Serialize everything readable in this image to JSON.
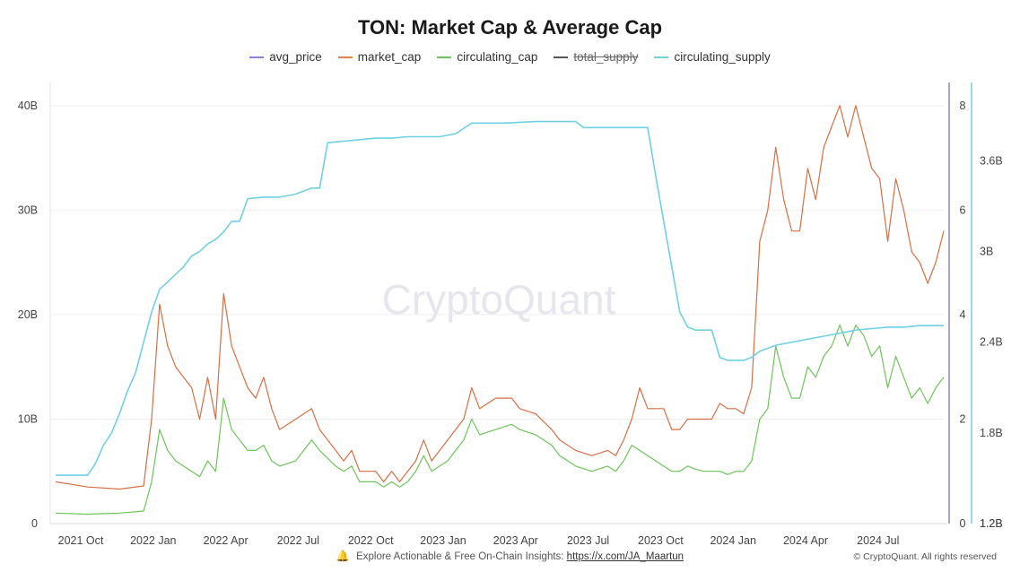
{
  "title": "TON: Market Cap & Average Cap",
  "legend": [
    {
      "label": "avg_price",
      "color": "#8f7fdc",
      "hidden": false
    },
    {
      "label": "market_cap",
      "color": "#e8834e",
      "hidden": false
    },
    {
      "label": "circulating_cap",
      "color": "#6cc659",
      "hidden": false
    },
    {
      "label": "total_supply",
      "color": "#555555",
      "hidden": true
    },
    {
      "label": "circulating_supply",
      "color": "#6fd0e6",
      "hidden": false
    }
  ],
  "footer": {
    "text": "Explore Actionable & Free On-Chain Insights: ",
    "link": "https://x.com/JA_Maartun",
    "copyright": "© CryptoQuant. All rights reserved"
  },
  "watermark": "CryptoQuant",
  "chart_data": {
    "type": "line",
    "x_ticks": [
      "2021 Oct",
      "2022 Jan",
      "2022 Apr",
      "2022 Jul",
      "2022 Oct",
      "2023 Jan",
      "2023 Apr",
      "2023 Jul",
      "2023 Oct",
      "2024 Jan",
      "2024 Apr",
      "2024 Jul"
    ],
    "y_left": {
      "ticks": [
        "0",
        "10B",
        "20B",
        "30B",
        "40B"
      ],
      "values": [
        0,
        10,
        20,
        30,
        40
      ],
      "unit": "B",
      "range": [
        0,
        40.5
      ]
    },
    "y_right_price": {
      "ticks": [
        "0",
        "2",
        "4",
        "6",
        "8"
      ],
      "values": [
        0,
        2,
        4,
        6,
        8
      ],
      "range": [
        0,
        8.1
      ],
      "axis_color": "#8f7fdc"
    },
    "y_right_supply": {
      "ticks": [
        "1.2B",
        "1.8B",
        "2.4B",
        "3B",
        "3.6B"
      ],
      "values": [
        1.2,
        1.8,
        2.4,
        3.0,
        3.6
      ],
      "range": [
        1.2,
        4.0
      ],
      "axis_color": "#6fd0e6"
    },
    "series": [
      {
        "name": "market_cap",
        "axis": "left",
        "color": "#d86f43",
        "points": [
          [
            0,
            4
          ],
          [
            4,
            3.5
          ],
          [
            8,
            3.3
          ],
          [
            11,
            3.6
          ],
          [
            12,
            10
          ],
          [
            13,
            21
          ],
          [
            14,
            17
          ],
          [
            15,
            15
          ],
          [
            17,
            13
          ],
          [
            18,
            10
          ],
          [
            19,
            14
          ],
          [
            20,
            10
          ],
          [
            21,
            22
          ],
          [
            22,
            17
          ],
          [
            23,
            15
          ],
          [
            24,
            13
          ],
          [
            25,
            12
          ],
          [
            26,
            14
          ],
          [
            27,
            11
          ],
          [
            28,
            9
          ],
          [
            30,
            10
          ],
          [
            32,
            11
          ],
          [
            33,
            9
          ],
          [
            35,
            7
          ],
          [
            36,
            6
          ],
          [
            37,
            7
          ],
          [
            38,
            5
          ],
          [
            40,
            5
          ],
          [
            41,
            4
          ],
          [
            42,
            5
          ],
          [
            43,
            4
          ],
          [
            44,
            5
          ],
          [
            45,
            6
          ],
          [
            46,
            8
          ],
          [
            47,
            6
          ],
          [
            48,
            7
          ],
          [
            49,
            8
          ],
          [
            50,
            9
          ],
          [
            51,
            10
          ],
          [
            52,
            13
          ],
          [
            53,
            11
          ],
          [
            55,
            12
          ],
          [
            57,
            12
          ],
          [
            58,
            11
          ],
          [
            60,
            10.5
          ],
          [
            62,
            9
          ],
          [
            63,
            8
          ],
          [
            65,
            7
          ],
          [
            67,
            6.5
          ],
          [
            69,
            7
          ],
          [
            70,
            6.5
          ],
          [
            71,
            8
          ],
          [
            72,
            10
          ],
          [
            73,
            13
          ],
          [
            74,
            11
          ],
          [
            76,
            11
          ],
          [
            77,
            9
          ],
          [
            78,
            9
          ],
          [
            79,
            10
          ],
          [
            80,
            10
          ],
          [
            81,
            10
          ],
          [
            82,
            10
          ],
          [
            83,
            11.5
          ],
          [
            84,
            11
          ],
          [
            85,
            11
          ],
          [
            86,
            10.5
          ],
          [
            87,
            13
          ],
          [
            88,
            27
          ],
          [
            89,
            30
          ],
          [
            90,
            36
          ],
          [
            91,
            31
          ],
          [
            92,
            28
          ],
          [
            93,
            28
          ],
          [
            94,
            34
          ],
          [
            95,
            31
          ],
          [
            96,
            36
          ],
          [
            97,
            38
          ],
          [
            98,
            40
          ],
          [
            99,
            37
          ],
          [
            100,
            40
          ],
          [
            101,
            37
          ],
          [
            102,
            34
          ],
          [
            103,
            33
          ],
          [
            104,
            27
          ],
          [
            105,
            33
          ],
          [
            106,
            30
          ],
          [
            107,
            26
          ],
          [
            108,
            25
          ],
          [
            109,
            23
          ],
          [
            110,
            25
          ],
          [
            111,
            28
          ]
        ]
      },
      {
        "name": "circulating_cap",
        "axis": "left",
        "color": "#6cc659",
        "points": [
          [
            0,
            1
          ],
          [
            4,
            0.9
          ],
          [
            8,
            1
          ],
          [
            11,
            1.2
          ],
          [
            12,
            4
          ],
          [
            13,
            9
          ],
          [
            14,
            7
          ],
          [
            15,
            6
          ],
          [
            17,
            5
          ],
          [
            18,
            4.5
          ],
          [
            19,
            6
          ],
          [
            20,
            5
          ],
          [
            21,
            12
          ],
          [
            22,
            9
          ],
          [
            23,
            8
          ],
          [
            24,
            7
          ],
          [
            25,
            7
          ],
          [
            26,
            7.5
          ],
          [
            27,
            6
          ],
          [
            28,
            5.5
          ],
          [
            30,
            6
          ],
          [
            32,
            8
          ],
          [
            33,
            7
          ],
          [
            35,
            5.5
          ],
          [
            36,
            5
          ],
          [
            37,
            5.5
          ],
          [
            38,
            4
          ],
          [
            40,
            4
          ],
          [
            41,
            3.5
          ],
          [
            42,
            4
          ],
          [
            43,
            3.5
          ],
          [
            44,
            4
          ],
          [
            45,
            5
          ],
          [
            46,
            6.5
          ],
          [
            47,
            5
          ],
          [
            48,
            5.5
          ],
          [
            49,
            6
          ],
          [
            50,
            7
          ],
          [
            51,
            8
          ],
          [
            52,
            10
          ],
          [
            53,
            8.5
          ],
          [
            55,
            9
          ],
          [
            57,
            9.5
          ],
          [
            58,
            9
          ],
          [
            60,
            8.5
          ],
          [
            62,
            7.5
          ],
          [
            63,
            6.5
          ],
          [
            65,
            5.5
          ],
          [
            67,
            5
          ],
          [
            69,
            5.5
          ],
          [
            70,
            5
          ],
          [
            71,
            6
          ],
          [
            72,
            7.5
          ],
          [
            73,
            7
          ],
          [
            74,
            6.5
          ],
          [
            76,
            5.5
          ],
          [
            77,
            5
          ],
          [
            78,
            5
          ],
          [
            79,
            5.5
          ],
          [
            80,
            5.2
          ],
          [
            81,
            5
          ],
          [
            82,
            5
          ],
          [
            83,
            5
          ],
          [
            84,
            4.7
          ],
          [
            85,
            5
          ],
          [
            86,
            5
          ],
          [
            87,
            6
          ],
          [
            88,
            10
          ],
          [
            89,
            11
          ],
          [
            90,
            17
          ],
          [
            91,
            14
          ],
          [
            92,
            12
          ],
          [
            93,
            12
          ],
          [
            94,
            15
          ],
          [
            95,
            14
          ],
          [
            96,
            16
          ],
          [
            97,
            17
          ],
          [
            98,
            19
          ],
          [
            99,
            17
          ],
          [
            100,
            19
          ],
          [
            101,
            18
          ],
          [
            102,
            16
          ],
          [
            103,
            17
          ],
          [
            104,
            13
          ],
          [
            105,
            16
          ],
          [
            106,
            14
          ],
          [
            107,
            12
          ],
          [
            108,
            13
          ],
          [
            109,
            11.5
          ],
          [
            110,
            13
          ],
          [
            111,
            14
          ]
        ]
      },
      {
        "name": "circulating_supply",
        "axis": "right_supply",
        "color": "#6fd0e6",
        "points": [
          [
            0,
            1.52
          ],
          [
            4,
            1.52
          ],
          [
            5,
            1.6
          ],
          [
            6,
            1.72
          ],
          [
            7,
            1.8
          ],
          [
            8,
            1.93
          ],
          [
            9,
            2.08
          ],
          [
            10,
            2.2
          ],
          [
            11,
            2.4
          ],
          [
            12,
            2.6
          ],
          [
            13,
            2.75
          ],
          [
            14,
            2.8
          ],
          [
            15,
            2.85
          ],
          [
            16,
            2.9
          ],
          [
            17,
            2.97
          ],
          [
            18,
            3.0
          ],
          [
            19,
            3.05
          ],
          [
            20,
            3.08
          ],
          [
            21,
            3.13
          ],
          [
            22,
            3.2
          ],
          [
            23,
            3.2
          ],
          [
            24,
            3.35
          ],
          [
            26,
            3.36
          ],
          [
            28,
            3.36
          ],
          [
            30,
            3.38
          ],
          [
            32,
            3.42
          ],
          [
            33,
            3.42
          ],
          [
            34,
            3.72
          ],
          [
            36,
            3.73
          ],
          [
            38,
            3.74
          ],
          [
            40,
            3.75
          ],
          [
            42,
            3.75
          ],
          [
            44,
            3.76
          ],
          [
            46,
            3.76
          ],
          [
            48,
            3.76
          ],
          [
            50,
            3.78
          ],
          [
            52,
            3.85
          ],
          [
            56,
            3.85
          ],
          [
            60,
            3.86
          ],
          [
            65,
            3.86
          ],
          [
            66,
            3.82
          ],
          [
            70,
            3.82
          ],
          [
            72,
            3.82
          ],
          [
            74,
            3.82
          ],
          [
            75,
            3.5
          ],
          [
            76,
            3.2
          ],
          [
            77,
            2.9
          ],
          [
            78,
            2.6
          ],
          [
            79,
            2.5
          ],
          [
            80,
            2.48
          ],
          [
            82,
            2.48
          ],
          [
            83,
            2.3
          ],
          [
            84,
            2.28
          ],
          [
            86,
            2.28
          ],
          [
            87,
            2.3
          ],
          [
            88,
            2.34
          ],
          [
            90,
            2.38
          ],
          [
            92,
            2.4
          ],
          [
            94,
            2.42
          ],
          [
            96,
            2.44
          ],
          [
            98,
            2.46
          ],
          [
            100,
            2.48
          ],
          [
            102,
            2.49
          ],
          [
            104,
            2.5
          ],
          [
            106,
            2.5
          ],
          [
            108,
            2.51
          ],
          [
            111,
            2.51
          ]
        ]
      }
    ]
  }
}
